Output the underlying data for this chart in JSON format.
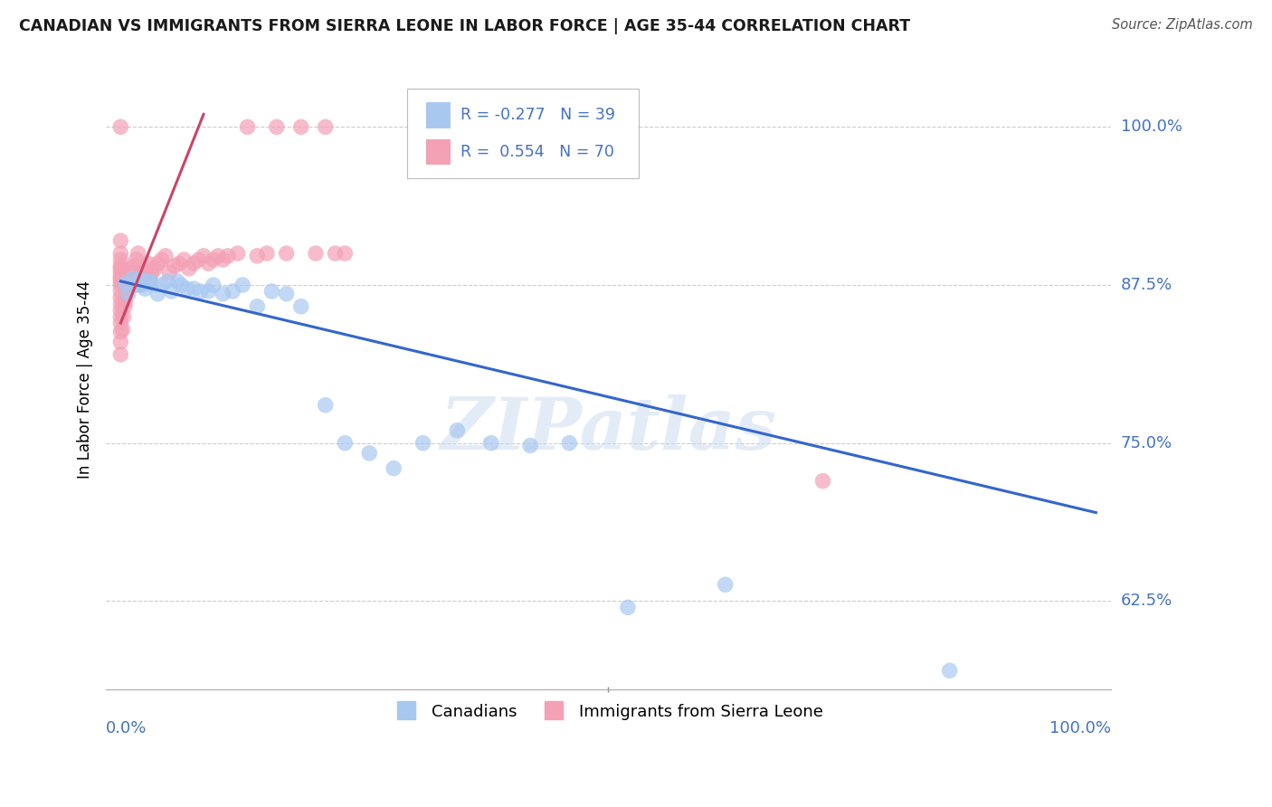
{
  "title": "CANADIAN VS IMMIGRANTS FROM SIERRA LEONE IN LABOR FORCE | AGE 35-44 CORRELATION CHART",
  "source": "Source: ZipAtlas.com",
  "ylabel": "In Labor Force | Age 35-44",
  "ytick_labels": [
    "100.0%",
    "87.5%",
    "75.0%",
    "62.5%"
  ],
  "ytick_values": [
    1.0,
    0.875,
    0.75,
    0.625
  ],
  "canadian_color": "#a8c8f0",
  "sierra_leone_color": "#f4a0b5",
  "canadian_line_color": "#3366cc",
  "sierra_leone_line_color": "#cc4466",
  "watermark_text": "ZIPatlas",
  "canadians_label": "Canadians",
  "immigrants_label": "Immigrants from Sierra Leone",
  "xlim": [
    -0.015,
    1.015
  ],
  "ylim": [
    0.555,
    1.045
  ],
  "canadian_points_x": [
    0.005,
    0.008,
    0.012,
    0.018,
    0.02,
    0.022,
    0.025,
    0.03,
    0.032,
    0.038,
    0.042,
    0.048,
    0.052,
    0.058,
    0.062,
    0.068,
    0.075,
    0.082,
    0.09,
    0.095,
    0.105,
    0.115,
    0.125,
    0.14,
    0.155,
    0.17,
    0.185,
    0.21,
    0.23,
    0.255,
    0.28,
    0.31,
    0.345,
    0.38,
    0.42,
    0.46,
    0.52,
    0.62,
    0.85
  ],
  "canadian_points_y": [
    0.876,
    0.868,
    0.88,
    0.875,
    0.88,
    0.875,
    0.872,
    0.878,
    0.876,
    0.868,
    0.875,
    0.878,
    0.87,
    0.878,
    0.875,
    0.872,
    0.872,
    0.87,
    0.87,
    0.875,
    0.868,
    0.87,
    0.875,
    0.858,
    0.87,
    0.868,
    0.858,
    0.78,
    0.75,
    0.742,
    0.73,
    0.75,
    0.76,
    0.75,
    0.748,
    0.75,
    0.62,
    0.638,
    0.57
  ],
  "sierra_leone_points_x": [
    0.0,
    0.0,
    0.0,
    0.0,
    0.0,
    0.0,
    0.0,
    0.0,
    0.0,
    0.0,
    0.0,
    0.0,
    0.0,
    0.0,
    0.0,
    0.0,
    0.0,
    0.0,
    0.0,
    0.0,
    0.002,
    0.003,
    0.004,
    0.005,
    0.006,
    0.007,
    0.008,
    0.009,
    0.01,
    0.011,
    0.012,
    0.014,
    0.016,
    0.018,
    0.02,
    0.022,
    0.024,
    0.026,
    0.028,
    0.03,
    0.032,
    0.035,
    0.038,
    0.042,
    0.046,
    0.05,
    0.055,
    0.06,
    0.065,
    0.07,
    0.075,
    0.08,
    0.085,
    0.09,
    0.095,
    0.1,
    0.105,
    0.11,
    0.12,
    0.13,
    0.14,
    0.15,
    0.16,
    0.17,
    0.185,
    0.2,
    0.21,
    0.22,
    0.23,
    0.72
  ],
  "sierra_leone_points_y": [
    0.82,
    0.83,
    0.838,
    0.845,
    0.85,
    0.855,
    0.86,
    0.865,
    0.87,
    0.875,
    0.878,
    0.88,
    0.882,
    0.885,
    0.888,
    0.89,
    0.895,
    0.9,
    0.91,
    1.0,
    0.84,
    0.85,
    0.858,
    0.862,
    0.868,
    0.872,
    0.875,
    0.878,
    0.88,
    0.885,
    0.888,
    0.89,
    0.895,
    0.9,
    0.875,
    0.88,
    0.885,
    0.888,
    0.892,
    0.88,
    0.885,
    0.888,
    0.892,
    0.895,
    0.898,
    0.885,
    0.89,
    0.892,
    0.895,
    0.888,
    0.892,
    0.895,
    0.898,
    0.892,
    0.895,
    0.898,
    0.895,
    0.898,
    0.9,
    1.0,
    0.898,
    0.9,
    1.0,
    0.9,
    1.0,
    0.9,
    1.0,
    0.9,
    0.9,
    0.72
  ],
  "canadian_trend_x": [
    0.0,
    1.0
  ],
  "canadian_trend_y": [
    0.878,
    0.695
  ],
  "sl_trend_x": [
    0.0,
    0.085
  ],
  "sl_trend_y": [
    0.845,
    1.01
  ]
}
